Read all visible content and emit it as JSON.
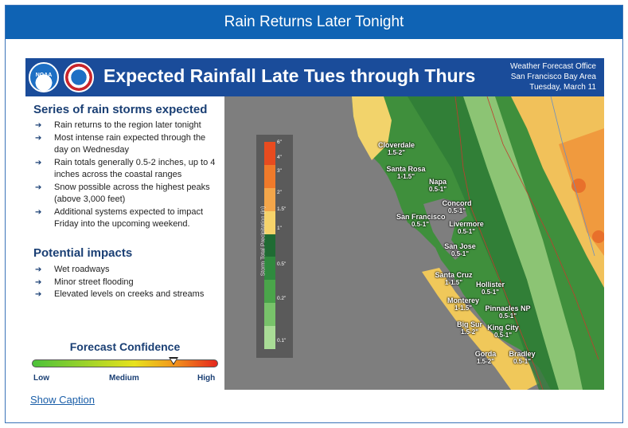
{
  "panel": {
    "header_title": "Rain Returns Later Tonight",
    "caption_link": "Show Caption"
  },
  "graphic": {
    "title": "Expected Rainfall Late Tues through Thurs",
    "logos": {
      "noaa": "NOAA",
      "nws": "nws-logo"
    },
    "office": [
      "Weather Forecast Office",
      "San Francisco Bay Area",
      "Tuesday, March 11"
    ],
    "storms_title": "Series of rain storms expected",
    "storms_bullets": [
      "Rain returns to the region later tonight",
      "Most intense rain expected through the day on Wednesday",
      "Rain totals generally 0.5-2 inches, up to 4 inches across the coastal ranges",
      "Snow possible across the highest peaks (above 3,000 feet)",
      "Additional systems expected to impact Friday into the upcoming weekend."
    ],
    "impacts_title": "Potential impacts",
    "impacts_bullets": [
      "Wet roadways",
      "Minor street flooding",
      "Elevated levels on creeks and streams"
    ],
    "confidence": {
      "title": "Forecast Confidence",
      "low": "Low",
      "medium": "Medium",
      "high": "High",
      "level": 0.76,
      "gradient_colors": [
        "#4cc23a",
        "#e7e21c",
        "#f29c1c",
        "#e5271d"
      ]
    },
    "legend": {
      "title": "Storm Total Precipitation (in)",
      "ticks": [
        "6\"",
        "4\"",
        "3\"",
        "2\"",
        "1.5\"",
        "1\"",
        "0.5\"",
        "0.2\"",
        "0.1\""
      ],
      "colors": [
        "#e84b1f",
        "#f07a2a",
        "#f3a64a",
        "#f6d36a",
        "#1f6b33",
        "#2f8a3e",
        "#4aa54a",
        "#78c36a",
        "#a9dc96"
      ]
    },
    "places": [
      {
        "name": "Cloverdale",
        "amount": "1.5-2\""
      },
      {
        "name": "Santa Rosa",
        "amount": "1-1.5\""
      },
      {
        "name": "Napa",
        "amount": "0.5-1\""
      },
      {
        "name": "Concord",
        "amount": "0.5-1\""
      },
      {
        "name": "San Francisco",
        "amount": "0.5-1\""
      },
      {
        "name": "Livermore",
        "amount": "0.5-1\""
      },
      {
        "name": "San Jose",
        "amount": "0.5-1\""
      },
      {
        "name": "Santa Cruz",
        "amount": "1-1.5\""
      },
      {
        "name": "Hollister",
        "amount": "0.5-1\""
      },
      {
        "name": "Monterey",
        "amount": "1-1.5\""
      },
      {
        "name": "Pinnacles NP",
        "amount": "0.5-1\""
      },
      {
        "name": "Big Sur",
        "amount": "1.5-2\""
      },
      {
        "name": "King City",
        "amount": "0.5-1\""
      },
      {
        "name": "Gorda",
        "amount": "1.5-2\""
      },
      {
        "name": "Bradley",
        "amount": "0.5-1\""
      }
    ]
  }
}
